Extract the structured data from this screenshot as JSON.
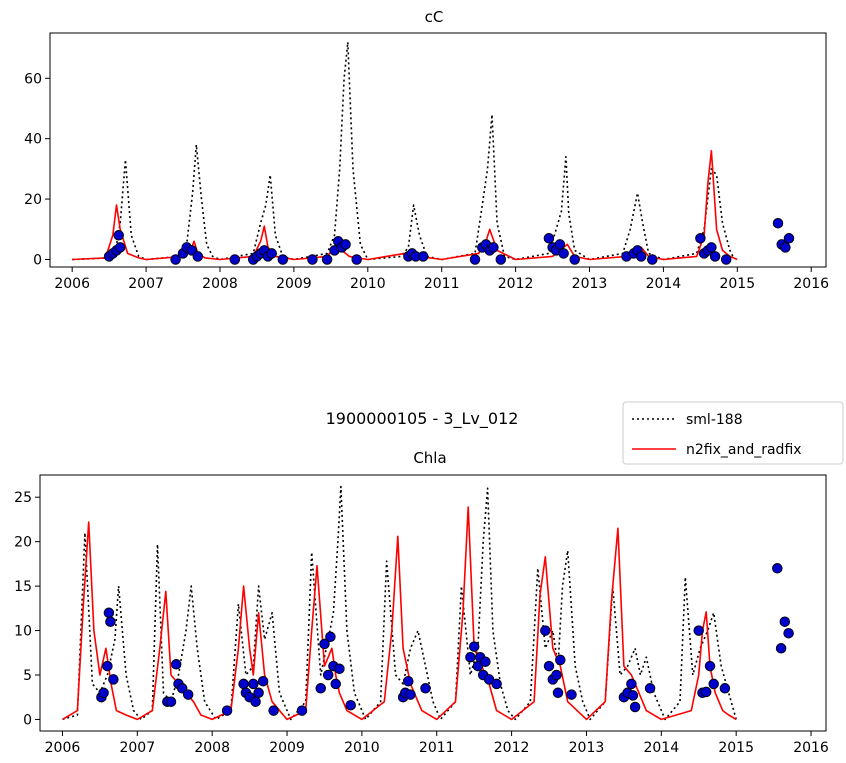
{
  "figure": {
    "suptitle": "1900000105 - 3_Lv_012",
    "legend": {
      "placement": "top-right",
      "entries": [
        {
          "label": "sml-188",
          "style": "dotted",
          "color": "#000000"
        },
        {
          "label": "n2fix_and_radfix",
          "style": "solid",
          "color": "#ff0000"
        }
      ]
    },
    "marker_color": "#0000cc"
  },
  "chart_data": [
    {
      "type": "line",
      "title": "cC",
      "xlim": [
        2005.7,
        2016.2
      ],
      "ylim": [
        -2.5,
        75
      ],
      "xticks": [
        2006,
        2007,
        2008,
        2009,
        2010,
        2011,
        2012,
        2013,
        2014,
        2015,
        2016
      ],
      "yticks": [
        0,
        20,
        40,
        60
      ],
      "series": [
        {
          "name": "sml-188",
          "style": "dotted",
          "color": "#000000",
          "x": [
            2006.0,
            2006.5,
            2006.58,
            2006.65,
            2006.72,
            2006.8,
            2006.9,
            2007.0,
            2007.45,
            2007.55,
            2007.63,
            2007.68,
            2007.75,
            2007.82,
            2007.9,
            2008.0,
            2008.45,
            2008.55,
            2008.62,
            2008.68,
            2008.75,
            2008.85,
            2009.0,
            2009.45,
            2009.55,
            2009.62,
            2009.68,
            2009.73,
            2009.8,
            2009.9,
            2010.0,
            2010.45,
            2010.55,
            2010.62,
            2010.7,
            2010.8,
            2011.0,
            2011.45,
            2011.55,
            2011.62,
            2011.68,
            2011.75,
            2011.85,
            2012.0,
            2012.45,
            2012.55,
            2012.62,
            2012.68,
            2012.72,
            2012.8,
            2013.0,
            2013.45,
            2013.55,
            2013.65,
            2013.72,
            2013.8,
            2014.0,
            2014.45,
            2014.55,
            2014.65,
            2014.72,
            2014.8,
            2014.9,
            2014.95
          ],
          "y": [
            0,
            0.5,
            2,
            12,
            33,
            8,
            1,
            0,
            1,
            5,
            22,
            38,
            20,
            5,
            1,
            0,
            2,
            12,
            18,
            28,
            8,
            1,
            0,
            2,
            8,
            30,
            60,
            72,
            30,
            5,
            0,
            1,
            4,
            18,
            8,
            1,
            0,
            2,
            18,
            30,
            48,
            12,
            1,
            0,
            2,
            10,
            16,
            34,
            15,
            3,
            0,
            2,
            10,
            22,
            12,
            2,
            0,
            2,
            10,
            30,
            28,
            12,
            3,
            0.5
          ]
        },
        {
          "name": "n2fix_and_radfix",
          "style": "solid",
          "color": "#ff0000",
          "x": [
            2006.0,
            2006.45,
            2006.55,
            2006.6,
            2006.65,
            2006.75,
            2006.9,
            2007.0,
            2007.5,
            2007.6,
            2007.65,
            2007.7,
            2007.8,
            2008.0,
            2008.45,
            2008.55,
            2008.6,
            2008.65,
            2008.75,
            2009.0,
            2009.45,
            2009.55,
            2009.6,
            2009.65,
            2009.75,
            2010.0,
            2010.5,
            2010.6,
            2010.7,
            2011.0,
            2011.5,
            2011.6,
            2011.65,
            2011.75,
            2012.0,
            2012.5,
            2012.6,
            2012.7,
            2012.8,
            2013.0,
            2013.5,
            2013.6,
            2013.7,
            2013.8,
            2014.0,
            2014.45,
            2014.55,
            2014.6,
            2014.65,
            2014.72,
            2014.8,
            2014.9,
            2015.0
          ],
          "y": [
            0,
            0.5,
            8,
            18,
            10,
            2,
            0.5,
            0,
            1,
            3,
            6,
            2,
            0.5,
            0,
            1,
            6,
            11,
            4,
            1,
            0,
            1,
            4,
            7,
            3,
            1,
            0,
            2,
            3,
            1,
            0,
            2,
            6,
            10,
            3,
            0,
            1,
            3,
            5,
            1,
            0,
            1,
            3,
            4,
            1,
            0,
            1,
            8,
            25,
            36,
            10,
            3,
            1,
            0
          ]
        }
      ],
      "observations": {
        "x": [
          2006.5,
          2006.55,
          2006.6,
          2006.63,
          2006.65,
          2007.4,
          2007.5,
          2007.55,
          2007.62,
          2007.7,
          2008.2,
          2008.45,
          2008.5,
          2008.55,
          2008.6,
          2008.65,
          2008.7,
          2008.85,
          2009.25,
          2009.45,
          2009.55,
          2009.6,
          2009.65,
          2009.7,
          2009.85,
          2010.55,
          2010.6,
          2010.65,
          2010.75,
          2011.45,
          2011.55,
          2011.6,
          2011.65,
          2011.7,
          2011.8,
          2012.45,
          2012.5,
          2012.55,
          2012.6,
          2012.65,
          2012.8,
          2013.5,
          2013.6,
          2013.65,
          2013.7,
          2013.85,
          2014.5,
          2014.55,
          2014.6,
          2014.65,
          2014.7,
          2014.85,
          2015.55,
          2015.6,
          2015.65,
          2015.7
        ],
        "y": [
          1,
          2,
          3,
          8,
          4,
          0,
          2,
          4,
          3,
          1,
          0,
          0,
          1,
          2,
          3,
          1,
          2,
          0,
          0,
          0,
          3,
          6,
          4,
          5,
          0,
          1,
          2,
          1,
          1,
          0,
          4,
          5,
          3,
          4,
          0,
          7,
          4,
          3,
          5,
          2,
          0,
          1,
          2,
          3,
          1,
          0,
          7,
          2,
          3,
          4,
          1,
          0,
          12,
          5,
          4,
          7
        ]
      }
    },
    {
      "type": "line",
      "title": "Chla",
      "xlim": [
        2005.7,
        2016.2
      ],
      "ylim": [
        -1.3,
        27.5
      ],
      "xticks": [
        2006,
        2007,
        2008,
        2009,
        2010,
        2011,
        2012,
        2013,
        2014,
        2015,
        2016
      ],
      "yticks": [
        0,
        5,
        10,
        15,
        20,
        25
      ],
      "series": [
        {
          "name": "sml-188",
          "style": "dotted",
          "color": "#000000",
          "x": [
            2006.0,
            2006.2,
            2006.3,
            2006.4,
            2006.5,
            2006.6,
            2006.7,
            2006.75,
            2006.85,
            2006.95,
            2007.05,
            2007.2,
            2007.27,
            2007.35,
            2007.45,
            2007.55,
            2007.65,
            2007.72,
            2007.8,
            2007.9,
            2008.05,
            2008.25,
            2008.35,
            2008.45,
            2008.55,
            2008.62,
            2008.7,
            2008.8,
            2008.9,
            2009.05,
            2009.25,
            2009.33,
            2009.45,
            2009.55,
            2009.62,
            2009.68,
            2009.72,
            2009.8,
            2009.9,
            2010.05,
            2010.25,
            2010.33,
            2010.45,
            2010.55,
            2010.65,
            2010.75,
            2010.85,
            2010.95,
            2011.05,
            2011.25,
            2011.33,
            2011.45,
            2011.55,
            2011.62,
            2011.68,
            2011.75,
            2011.85,
            2011.95,
            2012.05,
            2012.25,
            2012.35,
            2012.45,
            2012.55,
            2012.62,
            2012.68,
            2012.75,
            2012.85,
            2012.95,
            2013.05,
            2013.25,
            2013.35,
            2013.45,
            2013.55,
            2013.65,
            2013.72,
            2013.8,
            2013.9,
            2014.05,
            2014.25,
            2014.32,
            2014.42,
            2014.52,
            2014.62,
            2014.7,
            2014.8,
            2014.9,
            2015.0
          ],
          "y": [
            0,
            0.5,
            21,
            4,
            3,
            5,
            9,
            15,
            5,
            1,
            0,
            1,
            19.7,
            3,
            2,
            5,
            10,
            15,
            8,
            2,
            0,
            1,
            13,
            5,
            6,
            15,
            9,
            12,
            3,
            0,
            2,
            18.8,
            5,
            9,
            12,
            20,
            26.2,
            10,
            3,
            0,
            2,
            17.8,
            5,
            4,
            8,
            10,
            6,
            2,
            0,
            2,
            15,
            5,
            8,
            20,
            26,
            10,
            4,
            1,
            0,
            2,
            17,
            8,
            10,
            6,
            15,
            19,
            6,
            2,
            0,
            2,
            15,
            5,
            6,
            8,
            5,
            7,
            3,
            0,
            2,
            16,
            5,
            8,
            10,
            12,
            6,
            3,
            0
          ]
        },
        {
          "name": "n2fix_and_radfix",
          "style": "solid",
          "color": "#ff0000",
          "x": [
            2006.0,
            2006.2,
            2006.28,
            2006.35,
            2006.42,
            2006.5,
            2006.58,
            2006.65,
            2006.72,
            2006.85,
            2007.0,
            2007.2,
            2007.3,
            2007.38,
            2007.45,
            2007.55,
            2007.65,
            2007.75,
            2007.85,
            2008.0,
            2008.25,
            2008.35,
            2008.42,
            2008.5,
            2008.55,
            2008.62,
            2008.7,
            2008.8,
            2009.0,
            2009.25,
            2009.33,
            2009.4,
            2009.5,
            2009.6,
            2009.65,
            2009.7,
            2009.8,
            2010.0,
            2010.3,
            2010.4,
            2010.48,
            2010.55,
            2010.65,
            2010.8,
            2011.0,
            2011.25,
            2011.35,
            2011.42,
            2011.5,
            2011.6,
            2011.7,
            2011.8,
            2012.0,
            2012.3,
            2012.38,
            2012.45,
            2012.55,
            2012.65,
            2012.75,
            2013.0,
            2013.25,
            2013.33,
            2013.42,
            2013.5,
            2013.6,
            2013.7,
            2013.8,
            2014.0,
            2014.4,
            2014.5,
            2014.55,
            2014.6,
            2014.65,
            2014.72,
            2014.82,
            2014.9,
            2015.0
          ],
          "y": [
            0,
            1,
            13,
            22.2,
            10,
            5,
            8,
            4,
            1,
            0.5,
            0,
            1,
            8,
            14.4,
            5,
            4,
            3,
            2,
            0.5,
            0,
            1,
            8,
            15,
            8,
            5,
            12,
            5,
            2,
            0,
            1,
            10,
            17.3,
            6,
            8,
            5,
            3,
            1,
            0,
            2,
            10,
            20.6,
            8,
            4,
            1,
            0,
            2,
            12,
            23.9,
            8,
            6,
            4,
            1,
            0,
            2,
            14,
            18.3,
            8,
            6,
            2,
            0,
            2,
            13,
            21.5,
            6,
            5,
            3,
            1,
            0,
            1,
            5,
            10,
            12.1,
            6,
            3,
            1,
            0.5,
            0
          ]
        }
      ],
      "observations": {
        "x": [
          2006.52,
          2006.55,
          2006.6,
          2006.62,
          2006.64,
          2006.68,
          2007.4,
          2007.45,
          2007.52,
          2007.55,
          2007.6,
          2007.68,
          2008.2,
          2008.42,
          2008.45,
          2008.5,
          2008.55,
          2008.58,
          2008.62,
          2008.68,
          2008.82,
          2009.2,
          2009.45,
          2009.5,
          2009.55,
          2009.58,
          2009.62,
          2009.65,
          2009.7,
          2009.85,
          2010.55,
          2010.58,
          2010.62,
          2010.65,
          2010.85,
          2011.45,
          2011.5,
          2011.55,
          2011.58,
          2011.62,
          2011.65,
          2011.7,
          2011.8,
          2012.45,
          2012.5,
          2012.55,
          2012.6,
          2012.62,
          2012.65,
          2012.8,
          2013.5,
          2013.55,
          2013.6,
          2013.62,
          2013.65,
          2013.85,
          2014.5,
          2014.55,
          2014.6,
          2014.65,
          2014.7,
          2014.85,
          2015.55,
          2015.6,
          2015.65,
          2015.7
        ],
        "y": [
          2.5,
          3,
          6,
          12,
          11,
          4.5,
          2,
          2,
          6.2,
          4,
          3.5,
          2.8,
          1,
          4,
          3,
          2.5,
          4,
          2,
          3,
          4.3,
          1,
          1,
          3.5,
          8.5,
          5,
          9.3,
          6,
          4,
          5.7,
          1.6,
          2.5,
          3,
          4.3,
          2.8,
          3.5,
          7,
          8.2,
          6,
          7,
          5,
          6.5,
          4.5,
          4,
          10,
          6,
          4.5,
          5,
          3,
          6.7,
          2.8,
          2.5,
          3,
          4,
          2.7,
          1.4,
          3.5,
          10,
          3,
          3.1,
          6,
          4,
          3.5,
          17,
          8,
          11,
          9.7
        ]
      }
    }
  ]
}
